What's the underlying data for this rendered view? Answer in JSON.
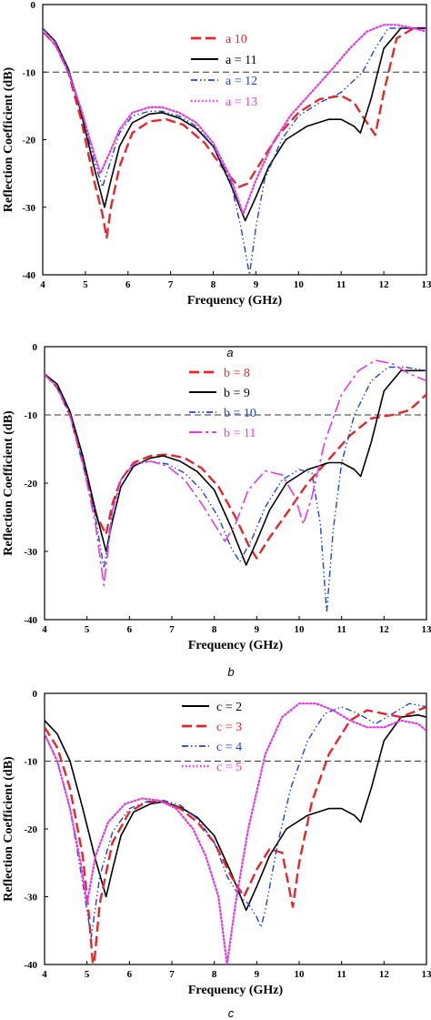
{
  "chart_data": [
    {
      "type": "line",
      "caption": "a",
      "xlabel": "Frequency (GHz)",
      "ylabel": "Reflection Coefficient (dB)",
      "xlim": [
        4,
        13
      ],
      "ylim": [
        -40,
        0
      ],
      "xticks": [
        "4",
        "5",
        "6",
        "7",
        "8",
        "9",
        "10",
        "11",
        "12",
        "13"
      ],
      "yticks": [
        "0",
        "-10",
        "-20",
        "-30",
        "-40"
      ],
      "reference_line": -10,
      "legend_position": "top-right",
      "series": [
        {
          "name": "a   10",
          "var": "a",
          "num": "10",
          "color": "#e8252a",
          "style": "dash",
          "x": [
            4,
            4.3,
            4.6,
            4.9,
            5.2,
            5.4,
            5.5,
            5.6,
            5.8,
            6.1,
            6.5,
            6.9,
            7.3,
            7.8,
            8.2,
            8.6,
            8.8,
            9.1,
            9.5,
            10.0,
            10.5,
            11.0,
            11.3,
            11.55,
            11.8,
            12.0,
            12.3,
            12.7,
            13
          ],
          "y": [
            -4,
            -6,
            -10,
            -17,
            -26,
            -31,
            -34.5,
            -30,
            -24,
            -19,
            -17.3,
            -17,
            -17.8,
            -20.5,
            -24,
            -27,
            -26.5,
            -23.5,
            -19.5,
            -16,
            -14,
            -13.5,
            -14.5,
            -17,
            -19.3,
            -13,
            -5,
            -3.5,
            -3.5
          ]
        },
        {
          "name": "a = 11",
          "var": "a",
          "num": "11",
          "color": "#000000",
          "style": "solid",
          "x": [
            4,
            4.3,
            4.6,
            4.9,
            5.2,
            5.45,
            5.6,
            5.8,
            6.1,
            6.5,
            6.8,
            7.2,
            7.6,
            8.0,
            8.4,
            8.75,
            9.0,
            9.3,
            9.7,
            10.2,
            10.7,
            11.0,
            11.3,
            11.45,
            11.7,
            12.0,
            12.4,
            12.8,
            13
          ],
          "y": [
            -3.5,
            -5.5,
            -9.5,
            -16,
            -24,
            -30,
            -26,
            -21,
            -17.5,
            -16.2,
            -16,
            -16.8,
            -18.3,
            -21,
            -26.5,
            -32,
            -28.5,
            -24,
            -20,
            -18,
            -17,
            -17,
            -18,
            -19,
            -14,
            -6.5,
            -3.5,
            -3.5,
            -3.5
          ]
        },
        {
          "name": "a = 12",
          "var": "a",
          "num": "12",
          "color": "#1e44d6",
          "style": "dashdotdot",
          "x": [
            4,
            4.3,
            4.6,
            4.9,
            5.2,
            5.4,
            5.6,
            5.8,
            6.1,
            6.5,
            6.8,
            7.2,
            7.6,
            8.0,
            8.4,
            8.65,
            8.85,
            9.0,
            9.2,
            9.6,
            10.0,
            10.5,
            11.0,
            11.5,
            11.8,
            12.1,
            12.5,
            13
          ],
          "y": [
            -3.5,
            -5.5,
            -9.5,
            -15.5,
            -23,
            -27,
            -23,
            -19,
            -16.5,
            -15.8,
            -15.8,
            -16.5,
            -18,
            -21,
            -26,
            -33,
            -40,
            -33,
            -26,
            -20,
            -16.5,
            -14.5,
            -13,
            -10,
            -6.5,
            -3.5,
            -3.5,
            -3.5
          ]
        },
        {
          "name": "a = 13",
          "var": "a",
          "num": "13",
          "color": "#e43ae0",
          "style": "dot",
          "x": [
            4,
            4.3,
            4.6,
            4.9,
            5.2,
            5.35,
            5.6,
            5.8,
            6.1,
            6.5,
            6.8,
            7.2,
            7.6,
            8.0,
            8.4,
            8.7,
            9.0,
            9.4,
            9.8,
            10.3,
            10.8,
            11.2,
            11.6,
            12.0,
            12.3,
            12.7,
            13
          ],
          "y": [
            -4,
            -6,
            -10,
            -15.5,
            -22,
            -25,
            -21.5,
            -18.5,
            -16,
            -15.2,
            -15.2,
            -16,
            -17.5,
            -20.5,
            -25.5,
            -31,
            -26,
            -20.5,
            -16.5,
            -13,
            -9.5,
            -6.5,
            -4,
            -3,
            -3,
            -3.5,
            -4
          ]
        }
      ]
    },
    {
      "type": "line",
      "caption": "b",
      "xlabel": "Frequency (GHz)",
      "ylabel": "Reflection Coefficient (dB)",
      "xlim": [
        4,
        13
      ],
      "ylim": [
        -40,
        0
      ],
      "xticks": [
        "4",
        "5",
        "6",
        "7",
        "8",
        "9",
        "10",
        "11",
        "12",
        "13"
      ],
      "yticks": [
        "0",
        "-10",
        "-20",
        "-30",
        "-40"
      ],
      "reference_line": -10,
      "legend_position": "top-right",
      "series": [
        {
          "name": "b = 8",
          "var": "b",
          "num": "8",
          "color": "#e8252a",
          "style": "dash",
          "x": [
            4,
            4.3,
            4.6,
            4.9,
            5.2,
            5.45,
            5.6,
            5.8,
            6.1,
            6.5,
            6.9,
            7.3,
            7.7,
            8.1,
            8.5,
            8.8,
            9.0,
            9.3,
            9.7,
            10.2,
            10.7,
            11.2,
            11.7,
            12.2,
            12.6,
            13
          ],
          "y": [
            -4,
            -6,
            -10,
            -17,
            -24.5,
            -27.5,
            -23,
            -19.5,
            -17,
            -16,
            -15.8,
            -16.3,
            -17.8,
            -20.5,
            -25,
            -29,
            -31,
            -28,
            -24.5,
            -20,
            -16.5,
            -13,
            -10.5,
            -10,
            -9.3,
            -7
          ]
        },
        {
          "name": "b = 9",
          "var": "b",
          "num": "9",
          "color": "#000000",
          "style": "solid",
          "x": [
            4,
            4.3,
            4.6,
            4.9,
            5.2,
            5.45,
            5.6,
            5.8,
            6.1,
            6.5,
            6.8,
            7.2,
            7.6,
            8.0,
            8.4,
            8.75,
            9.0,
            9.3,
            9.7,
            10.2,
            10.7,
            11.0,
            11.3,
            11.45,
            11.7,
            12.0,
            12.4,
            12.8,
            13
          ],
          "y": [
            -4,
            -5.5,
            -9.5,
            -16,
            -24,
            -30,
            -25.5,
            -20.5,
            -17.5,
            -16.3,
            -16,
            -16.8,
            -18.3,
            -21,
            -26.5,
            -32,
            -28.5,
            -24,
            -20,
            -18,
            -17,
            -17,
            -18,
            -19,
            -14,
            -6.5,
            -3.5,
            -3.5,
            -3.5
          ]
        },
        {
          "name": "b = 10",
          "var": "b",
          "num": "10",
          "color": "#1e44d6",
          "style": "dashdotdot",
          "x": [
            4,
            4.3,
            4.6,
            4.9,
            5.2,
            5.4,
            5.6,
            5.8,
            6.1,
            6.5,
            6.9,
            7.3,
            7.7,
            8.1,
            8.4,
            8.6,
            8.9,
            9.2,
            9.6,
            10.0,
            10.3,
            10.5,
            10.65,
            10.8,
            11.0,
            11.3,
            11.7,
            12.1,
            12.5,
            13
          ],
          "y": [
            -4,
            -6,
            -10,
            -17,
            -25,
            -32.5,
            -24,
            -19.5,
            -17.3,
            -16.8,
            -17.2,
            -18.5,
            -21,
            -25,
            -29.5,
            -31.5,
            -28,
            -23.5,
            -19.5,
            -18,
            -18.5,
            -26,
            -39,
            -27,
            -17,
            -10,
            -5,
            -3,
            -3,
            -3.5
          ]
        },
        {
          "name": "b = 11",
          "var": "b",
          "num": "11",
          "color": "#e43ae0",
          "style": "longdash",
          "x": [
            4,
            4.3,
            4.6,
            4.9,
            5.2,
            5.4,
            5.6,
            5.8,
            6.1,
            6.5,
            6.9,
            7.3,
            7.7,
            8.0,
            8.25,
            8.5,
            8.8,
            9.2,
            9.6,
            9.9,
            10.1,
            10.3,
            10.6,
            11.0,
            11.4,
            11.8,
            12.2,
            12.6,
            13
          ],
          "y": [
            -4,
            -6,
            -10,
            -17,
            -26,
            -35,
            -24,
            -19.5,
            -17.2,
            -16.8,
            -17.5,
            -19.5,
            -23,
            -26,
            -28.5,
            -26,
            -21,
            -18.2,
            -18.8,
            -22,
            -26,
            -22,
            -14,
            -7,
            -3.5,
            -2,
            -2.5,
            -4,
            -5
          ]
        }
      ]
    },
    {
      "type": "line",
      "caption": "c",
      "xlabel": "Frequency (GHz)",
      "ylabel": "Reflection Coefficient (dB)",
      "xlim": [
        4,
        13
      ],
      "ylim": [
        -40,
        0
      ],
      "xticks": [
        "4",
        "5",
        "6",
        "7",
        "8",
        "9",
        "10",
        "11",
        "12",
        "13"
      ],
      "yticks": [
        "0",
        "-10",
        "-20",
        "-30",
        "-40"
      ],
      "reference_line": -10,
      "legend_position": "top-center",
      "series": [
        {
          "name": "c = 2",
          "var": "c",
          "num": "2",
          "color": "#000000",
          "style": "solid",
          "x": [
            4,
            4.3,
            4.6,
            4.9,
            5.2,
            5.45,
            5.6,
            5.8,
            6.1,
            6.5,
            6.8,
            7.2,
            7.6,
            8.0,
            8.4,
            8.75,
            9.0,
            9.3,
            9.7,
            10.2,
            10.7,
            11.0,
            11.3,
            11.45,
            11.7,
            12.0,
            12.4,
            12.8,
            13
          ],
          "y": [
            -4,
            -6,
            -10,
            -17,
            -24.5,
            -30,
            -26,
            -21,
            -17.5,
            -16.3,
            -16,
            -16.8,
            -18.3,
            -21,
            -26.5,
            -32,
            -28.5,
            -24,
            -20,
            -18,
            -17,
            -17,
            -18,
            -19,
            -14,
            -7,
            -3.5,
            -3.2,
            -3.5
          ]
        },
        {
          "name": "c = 3",
          "var": "c",
          "num": "3",
          "color": "#e8252a",
          "style": "dash",
          "x": [
            4,
            4.3,
            4.6,
            4.9,
            5.05,
            5.15,
            5.3,
            5.6,
            6.0,
            6.4,
            6.8,
            7.2,
            7.6,
            8.0,
            8.4,
            8.7,
            9.0,
            9.3,
            9.6,
            9.85,
            10.0,
            10.3,
            10.7,
            11.2,
            11.6,
            12.0,
            12.4,
            12.8,
            13
          ],
          "y": [
            -5,
            -8,
            -14,
            -24,
            -33,
            -41,
            -31,
            -22,
            -17.5,
            -16,
            -16,
            -17,
            -19,
            -22,
            -27,
            -30,
            -26,
            -23,
            -23.5,
            -31.5,
            -25,
            -16,
            -9,
            -4,
            -2.5,
            -3,
            -3.5,
            -2.5,
            -2
          ]
        },
        {
          "name": "c = 4",
          "var": "c",
          "num": "4",
          "color": "#1e44d6",
          "style": "dashdotdot",
          "x": [
            4,
            4.3,
            4.6,
            4.9,
            5.1,
            5.3,
            5.6,
            6.0,
            6.4,
            6.8,
            7.2,
            7.6,
            8.0,
            8.3,
            8.6,
            8.8,
            9.0,
            9.1,
            9.2,
            9.5,
            9.8,
            10.2,
            10.6,
            11.0,
            11.4,
            11.8,
            12.2,
            12.6,
            13
          ],
          "y": [
            -6,
            -10,
            -17,
            -28,
            -36,
            -27,
            -20.5,
            -17,
            -16,
            -15.8,
            -16.5,
            -18.5,
            -22,
            -27,
            -30,
            -31,
            -33,
            -34.5,
            -32,
            -22,
            -14,
            -7,
            -3,
            -2,
            -3,
            -4.5,
            -3,
            -1.5,
            -2
          ]
        },
        {
          "name": "c = 5",
          "var": "c",
          "num": "5",
          "color": "#e43ae0",
          "style": "dot",
          "x": [
            4,
            4.3,
            4.6,
            4.85,
            5.0,
            5.2,
            5.5,
            5.9,
            6.3,
            6.7,
            7.1,
            7.5,
            7.8,
            8.1,
            8.3,
            8.5,
            8.8,
            9.2,
            9.6,
            10.0,
            10.4,
            10.8,
            11.2,
            11.6,
            12.0,
            12.4,
            12.8,
            13
          ],
          "y": [
            -6,
            -10,
            -17,
            -25,
            -31,
            -24,
            -19,
            -16.3,
            -15.5,
            -15.8,
            -17,
            -20,
            -24,
            -30,
            -40,
            -31,
            -20,
            -9,
            -3.5,
            -1.5,
            -1.5,
            -2.5,
            -4,
            -5,
            -5,
            -4,
            -4.5,
            -5.5
          ]
        }
      ]
    }
  ]
}
